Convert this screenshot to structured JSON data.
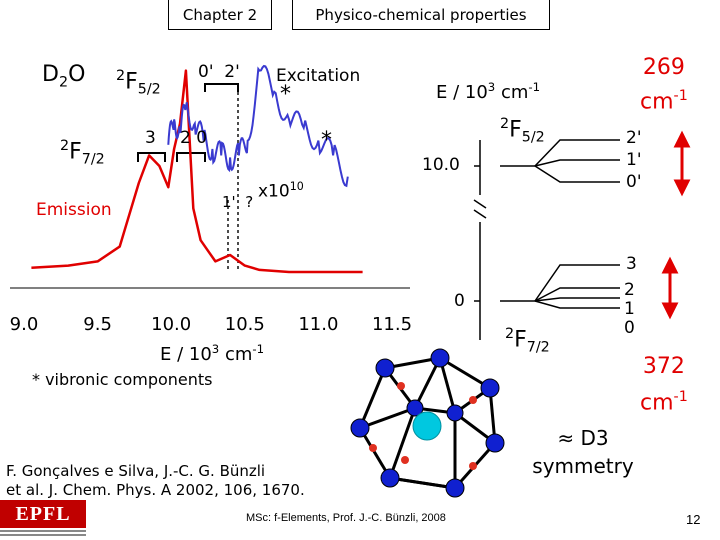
{
  "header": {
    "chapter": "Chapter 2",
    "section": "Physico-chemical properties"
  },
  "spectrum": {
    "species": "D2O",
    "upper_term": "2F5/2",
    "lower_term": "2F7/2",
    "excitation_label": "Excitation",
    "emission_label": "Emission",
    "scale_label": "x1010",
    "upper_levels_label": "0'  2'",
    "lower_levels_label_a": "3",
    "lower_levels_label_b": "2 0",
    "hot_band_label": "1'  ?",
    "asterisk": "*",
    "xlabel": "E / 103 cm-1",
    "footnote": "* vibronic components",
    "x_ticks": [
      "9.0",
      "9.5",
      "10.0",
      "10.5",
      "11.0",
      "11.5"
    ]
  },
  "energy_diagram": {
    "axis_title": "E / 103 cm-1",
    "tick_high": "10.0",
    "tick_low": "0",
    "upper_term": "2F5/2",
    "lower_term": "2F7/2",
    "upper_levels": [
      "2'",
      "1'",
      "0'"
    ],
    "lower_levels": [
      "3",
      "2",
      "1",
      "0"
    ],
    "upper_splitting": "269 cm-1",
    "lower_splitting": "372 cm-1",
    "symmetry": "≈ D3 symmetry"
  },
  "reference": {
    "line1": "F. Gonçalves e Silva, J.-C. G. Bünzli",
    "line2": "et al. J. Chem. Phys. A 2002, 106, 1670."
  },
  "footer": {
    "course": "MSc: f-Elements, Prof. J.-C. Bünzli, 2008",
    "page": "12",
    "logo_text": "EPFL"
  },
  "colors": {
    "emission": "#e00000",
    "excitation": "#3a3ad0",
    "level_accent": "#e00000",
    "metal_center": "#00c8e0",
    "oxygen": "#1020d0",
    "hydrogen": "#e03020"
  },
  "chart_data": {
    "type": "line",
    "x_ticks": [
      9.0,
      9.5,
      10.0,
      10.5,
      11.0,
      11.5
    ],
    "xlim": [
      9.0,
      11.6
    ],
    "series": [
      {
        "name": "Emission",
        "x": [
          9.05,
          9.3,
          9.5,
          9.65,
          9.78,
          9.85,
          9.92,
          9.98,
          10.02,
          10.06,
          10.1,
          10.15,
          10.2,
          10.25,
          10.3,
          10.4,
          10.5,
          10.6,
          10.8,
          11.0,
          11.3
        ],
        "y": [
          0.02,
          0.03,
          0.05,
          0.12,
          0.42,
          0.55,
          0.5,
          0.4,
          0.58,
          0.7,
          0.95,
          0.3,
          0.15,
          0.1,
          0.05,
          0.08,
          0.03,
          0.01,
          0.0,
          0.0,
          0.0
        ]
      },
      {
        "name": "Excitation",
        "x": [
          9.98,
          10.02,
          10.06,
          10.1,
          10.16,
          10.22,
          10.28,
          10.34,
          10.4,
          10.46,
          10.52,
          10.6,
          10.7,
          10.8,
          10.9,
          11.0,
          11.1,
          11.2
        ],
        "y": [
          0.6,
          0.72,
          0.66,
          0.78,
          0.7,
          0.62,
          0.58,
          0.55,
          0.54,
          0.55,
          0.62,
          0.95,
          0.85,
          0.72,
          0.68,
          0.62,
          0.55,
          0.45
        ]
      }
    ]
  }
}
